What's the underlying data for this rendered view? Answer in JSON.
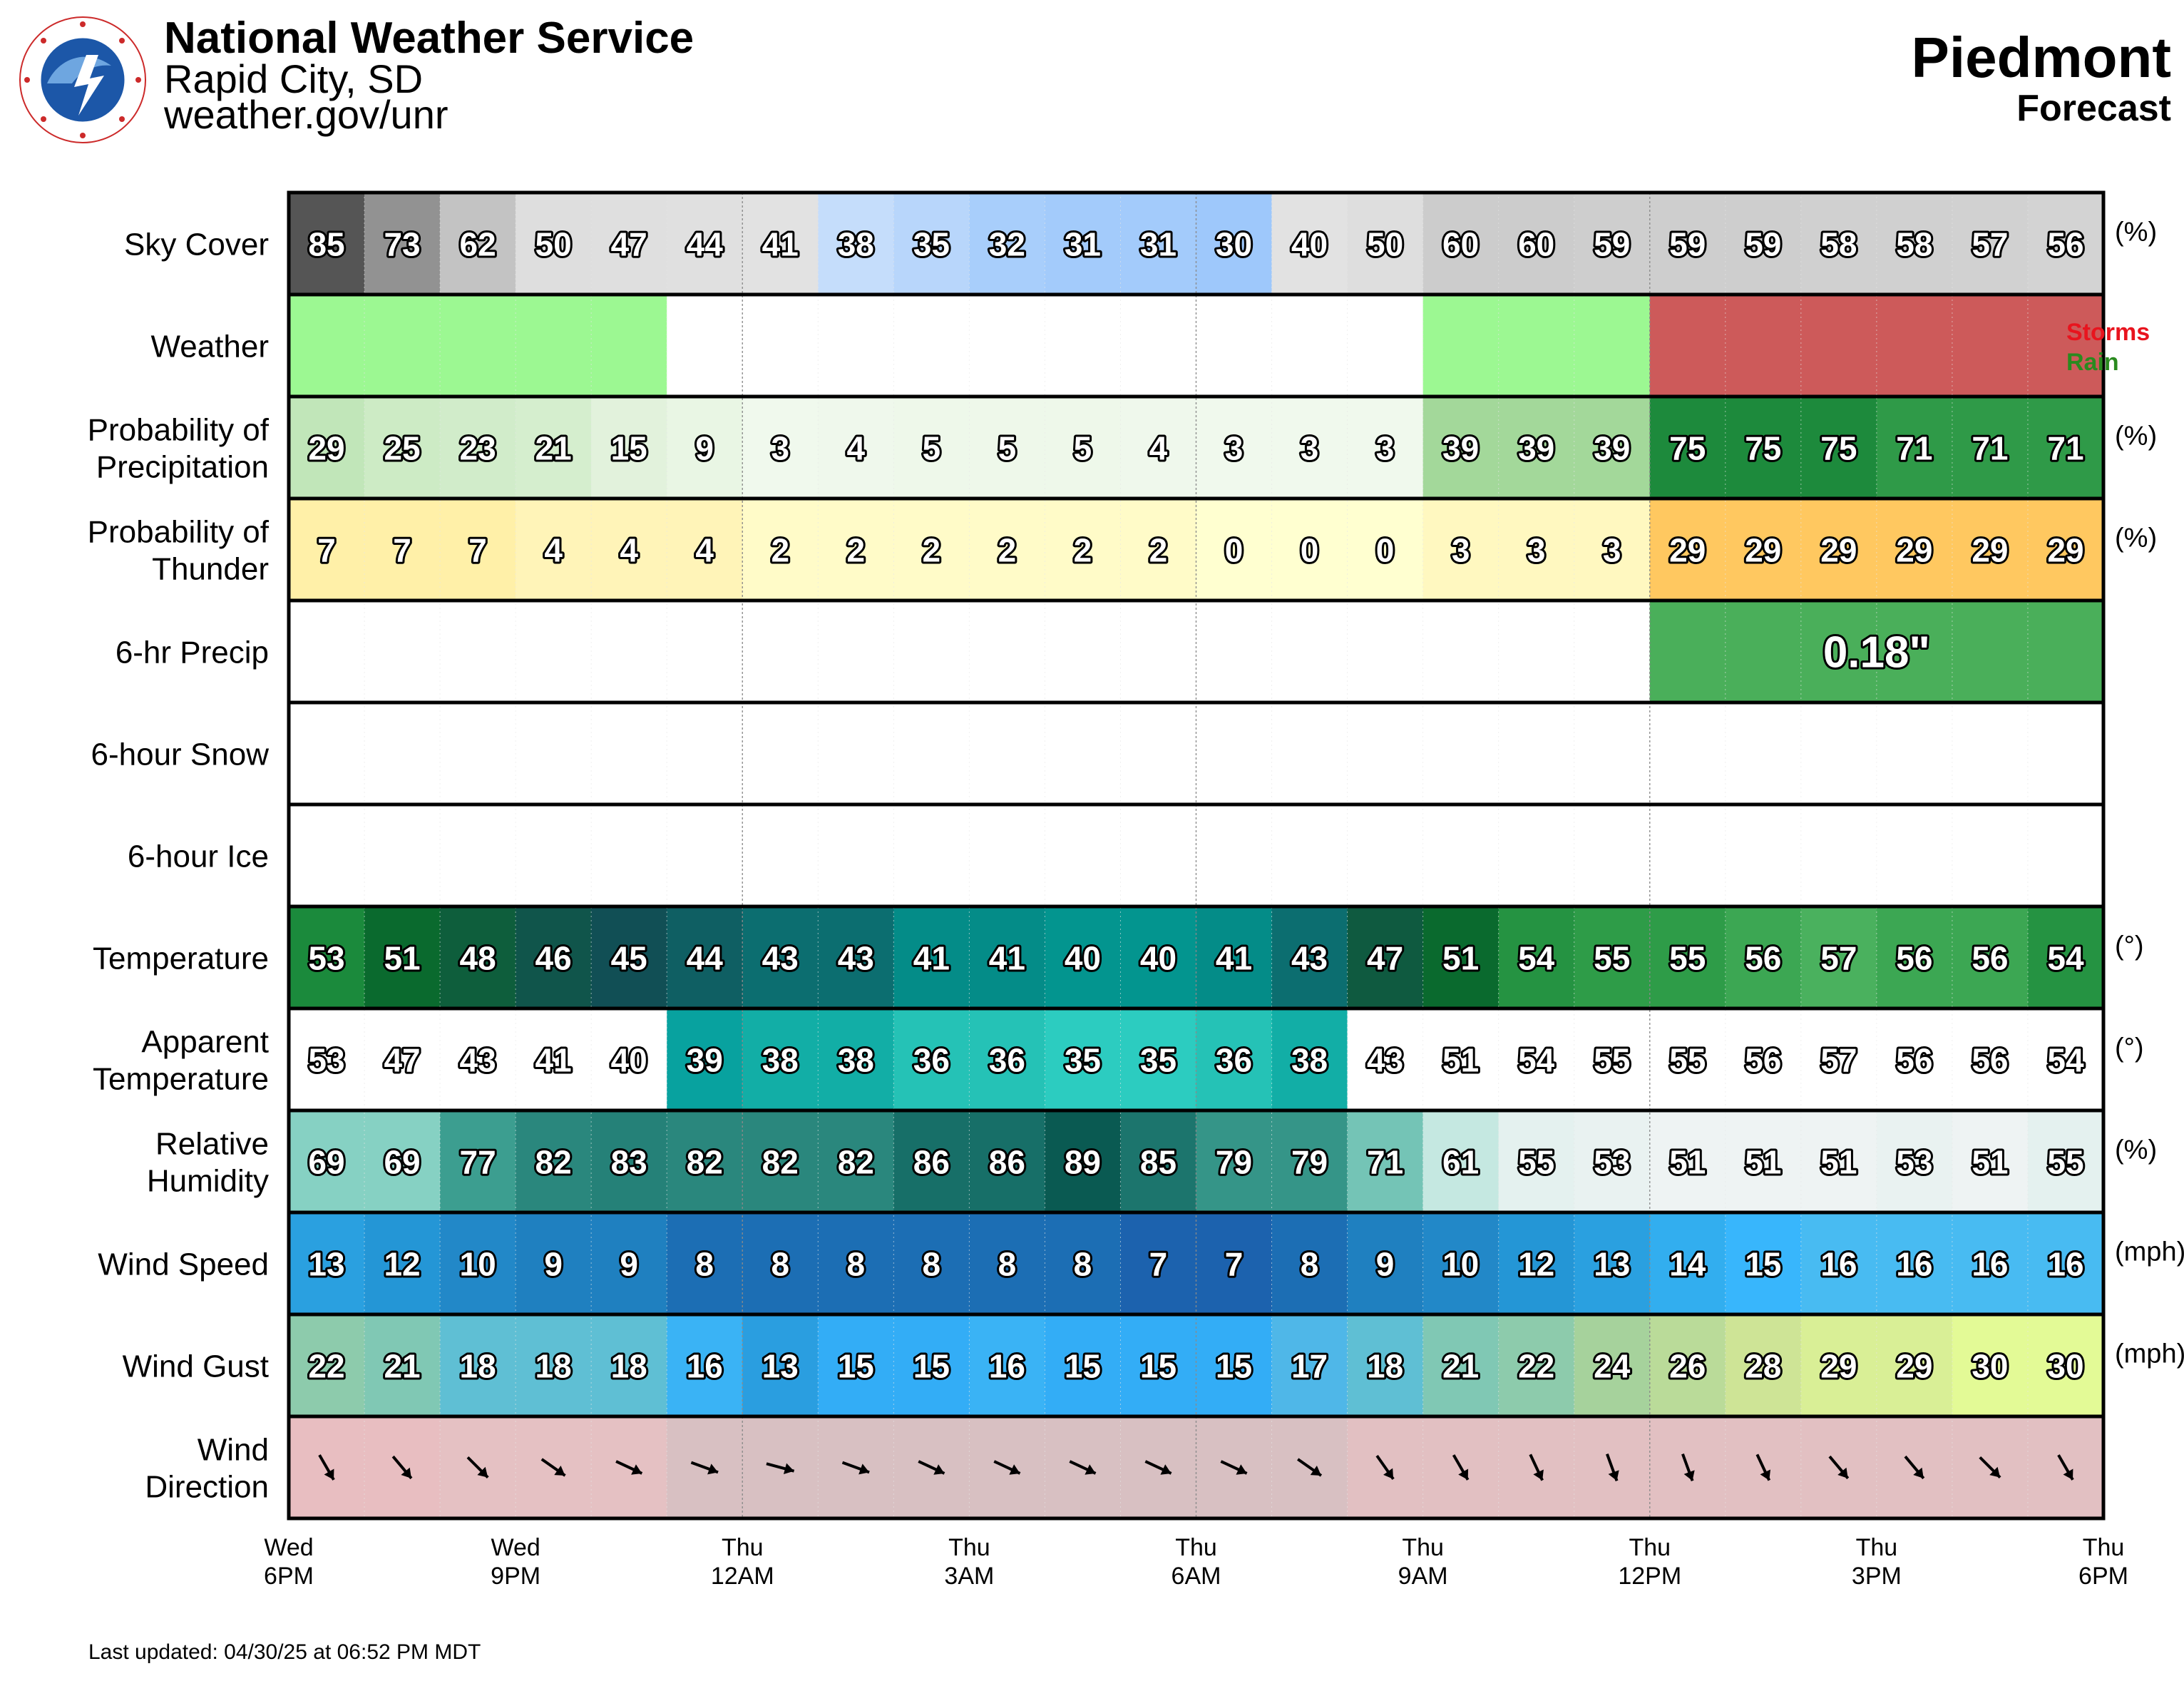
{
  "header": {
    "org_name": "National Weather Service",
    "office": "Rapid City, SD",
    "url": "weather.gov/unr",
    "location": "Piedmont",
    "subtitle": "Forecast"
  },
  "footer": {
    "last_updated": "Last updated: 04/30/25 at 06:52 PM MDT"
  },
  "colors": {
    "grid_border": "#000000",
    "storms": "#e8141e",
    "rain": "#2a8a1f"
  },
  "chart_data": {
    "type": "table",
    "columns": 24,
    "time_axis": [
      {
        "day": "Wed",
        "time": "6PM",
        "col": 0
      },
      {
        "day": "Wed",
        "time": "9PM",
        "col": 3
      },
      {
        "day": "Thu",
        "time": "12AM",
        "col": 6
      },
      {
        "day": "Thu",
        "time": "3AM",
        "col": 9
      },
      {
        "day": "Thu",
        "time": "6AM",
        "col": 12
      },
      {
        "day": "Thu",
        "time": "9AM",
        "col": 15
      },
      {
        "day": "Thu",
        "time": "12PM",
        "col": 18
      },
      {
        "day": "Thu",
        "time": "3PM",
        "col": 21
      },
      {
        "day": "Thu",
        "time": "6PM",
        "col": 24
      }
    ],
    "rows": [
      {
        "key": "sky",
        "label": [
          "Sky Cover"
        ],
        "unit": "(%)",
        "values": [
          85,
          73,
          62,
          50,
          47,
          44,
          41,
          38,
          35,
          32,
          31,
          31,
          30,
          40,
          50,
          60,
          60,
          59,
          59,
          59,
          58,
          58,
          57,
          56
        ]
      },
      {
        "key": "weather",
        "label": [
          "Weather"
        ],
        "values": [
          "Rain",
          "Rain",
          "Rain",
          "Rain",
          "Rain",
          "",
          "",
          "",
          "",
          "",
          "",
          "",
          "",
          "",
          "",
          "Rain",
          "Rain",
          "Rain",
          "Storms",
          "Storms",
          "Storms",
          "Storms",
          "Storms",
          "Storms"
        ],
        "legend": [
          {
            "text": "Storms",
            "color": "#e8141e"
          },
          {
            "text": "Rain",
            "color": "#2a8a1f"
          }
        ]
      },
      {
        "key": "pop",
        "label": [
          "Probability of",
          "Precipitation"
        ],
        "unit": "(%)",
        "values": [
          29,
          25,
          23,
          21,
          15,
          9,
          3,
          4,
          5,
          5,
          5,
          4,
          3,
          3,
          3,
          39,
          39,
          39,
          75,
          75,
          75,
          71,
          71,
          71
        ]
      },
      {
        "key": "thunder",
        "label": [
          "Probability of",
          "Thunder"
        ],
        "unit": "(%)",
        "values": [
          7,
          7,
          7,
          4,
          4,
          4,
          2,
          2,
          2,
          2,
          2,
          2,
          0,
          0,
          0,
          3,
          3,
          3,
          29,
          29,
          29,
          29,
          29,
          29
        ]
      },
      {
        "key": "qpf",
        "label": [
          "6-hr Precip"
        ],
        "blocks": [
          {
            "start": 18,
            "end": 24,
            "text": "0.18\""
          }
        ]
      },
      {
        "key": "snow",
        "label": [
          "6-hour Snow"
        ],
        "blocks": []
      },
      {
        "key": "ice",
        "label": [
          "6-hour Ice"
        ],
        "blocks": []
      },
      {
        "key": "temp",
        "label": [
          "Temperature"
        ],
        "unit": "(°)",
        "values": [
          53,
          51,
          48,
          46,
          45,
          44,
          43,
          43,
          41,
          41,
          40,
          40,
          41,
          43,
          47,
          51,
          54,
          55,
          55,
          56,
          57,
          56,
          56,
          54
        ]
      },
      {
        "key": "apparent",
        "label": [
          "Apparent",
          "Temperature"
        ],
        "unit": "(°)",
        "values": [
          53,
          47,
          43,
          41,
          40,
          39,
          38,
          38,
          36,
          36,
          35,
          35,
          36,
          38,
          43,
          51,
          54,
          55,
          55,
          56,
          57,
          56,
          56,
          54
        ]
      },
      {
        "key": "rh",
        "label": [
          "Relative",
          "Humidity"
        ],
        "unit": "(%)",
        "values": [
          69,
          69,
          77,
          82,
          83,
          82,
          82,
          82,
          86,
          86,
          89,
          85,
          79,
          79,
          71,
          61,
          55,
          53,
          51,
          51,
          51,
          53,
          51,
          55
        ]
      },
      {
        "key": "wspd",
        "label": [
          "Wind Speed"
        ],
        "unit": "(mph)",
        "values": [
          13,
          12,
          10,
          9,
          9,
          8,
          8,
          8,
          8,
          8,
          8,
          7,
          7,
          8,
          9,
          10,
          12,
          13,
          14,
          15,
          16,
          16,
          16,
          16
        ]
      },
      {
        "key": "gust",
        "label": [
          "Wind Gust"
        ],
        "unit": "(mph)",
        "values": [
          22,
          21,
          18,
          18,
          18,
          16,
          13,
          15,
          15,
          16,
          15,
          15,
          15,
          17,
          18,
          21,
          22,
          24,
          26,
          28,
          29,
          29,
          30,
          30
        ]
      },
      {
        "key": "wdir",
        "label": [
          "Wind",
          "Direction"
        ],
        "unit_degrees": "°",
        "values": [
          330,
          320,
          315,
          305,
          295,
          290,
          285,
          290,
          295,
          295,
          295,
          295,
          295,
          305,
          325,
          330,
          335,
          340,
          340,
          335,
          320,
          320,
          315,
          330
        ]
      }
    ]
  }
}
